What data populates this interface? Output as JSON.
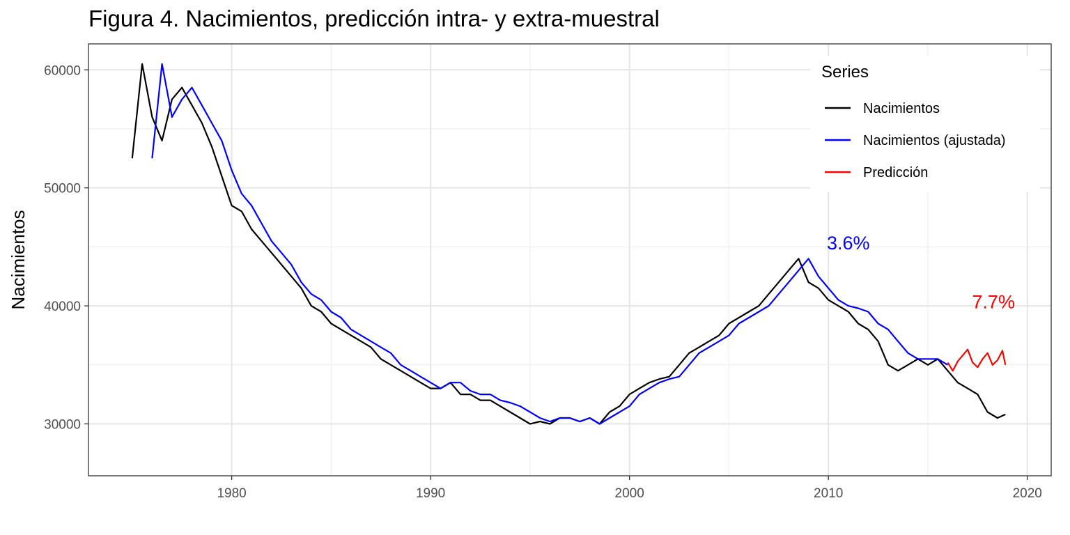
{
  "chart_data": {
    "type": "line",
    "title": "Figura 4. Nacimientos, predicción intra- y extra-muestral",
    "xlabel": "",
    "ylabel": "Nacimientos",
    "xlim": [
      1972.8,
      2021.2
    ],
    "ylim": [
      25600,
      62200
    ],
    "x_ticks": [
      1980,
      1990,
      2000,
      2010,
      2020
    ],
    "x_tick_labels": [
      "1980",
      "1990",
      "2000",
      "2010",
      "2020"
    ],
    "y_ticks": [
      30000,
      40000,
      50000,
      60000
    ],
    "y_tick_labels": [
      "30000",
      "40000",
      "50000",
      "60000"
    ],
    "grid": true,
    "legend": {
      "title": "Series",
      "position": "top-right",
      "entries": [
        "Nacimientos",
        "Nacimientos (ajustada)",
        "Predicción"
      ]
    },
    "series": [
      {
        "name": "Nacimientos",
        "color": "#000000",
        "x": [
          1975.0,
          1975.5,
          1976.0,
          1976.5,
          1977.0,
          1977.5,
          1978.0,
          1978.5,
          1979.0,
          1979.5,
          1980.0,
          1980.5,
          1981.0,
          1981.5,
          1982.0,
          1982.5,
          1983.0,
          1983.5,
          1984.0,
          1984.5,
          1985.0,
          1985.5,
          1986.0,
          1986.5,
          1987.0,
          1987.5,
          1988.0,
          1988.5,
          1989.0,
          1989.5,
          1990.0,
          1990.5,
          1991.0,
          1991.5,
          1992.0,
          1992.5,
          1993.0,
          1993.5,
          1994.0,
          1994.5,
          1995.0,
          1995.5,
          1996.0,
          1996.5,
          1997.0,
          1997.5,
          1998.0,
          1998.5,
          1999.0,
          1999.5,
          2000.0,
          2000.5,
          2001.0,
          2001.5,
          2002.0,
          2002.5,
          2003.0,
          2003.5,
          2004.0,
          2004.5,
          2005.0,
          2005.5,
          2006.0,
          2006.5,
          2007.0,
          2007.5,
          2008.0,
          2008.5,
          2009.0,
          2009.5,
          2010.0,
          2010.5,
          2011.0,
          2011.5,
          2012.0,
          2012.5,
          2013.0,
          2013.5,
          2014.0,
          2014.5,
          2015.0,
          2015.5,
          2016.0,
          2016.5,
          2017.0,
          2017.5,
          2018.0,
          2018.5,
          2018.9
        ],
        "values": [
          52500,
          60500,
          56000,
          54000,
          57500,
          58500,
          57000,
          55500,
          53500,
          51000,
          48500,
          48000,
          46500,
          45500,
          44500,
          43500,
          42500,
          41500,
          40000,
          39500,
          38500,
          38000,
          37500,
          37000,
          36500,
          35500,
          35000,
          34500,
          34000,
          33500,
          33000,
          33000,
          33500,
          32500,
          32500,
          32000,
          32000,
          31500,
          31000,
          30500,
          30000,
          30200,
          30000,
          30500,
          30500,
          30200,
          30500,
          30000,
          31000,
          31500,
          32500,
          33000,
          33500,
          33800,
          34000,
          35000,
          36000,
          36500,
          37000,
          37500,
          38500,
          39000,
          39500,
          40000,
          41000,
          42000,
          43000,
          44000,
          42000,
          41500,
          40500,
          40000,
          39500,
          38500,
          38000,
          37000,
          35000,
          34500,
          35000,
          35500,
          35000,
          35500,
          34500,
          33500,
          33000,
          32500,
          31000,
          30500,
          30800
        ]
      },
      {
        "name": "Nacimientos (ajustada)",
        "color": "#0000ff",
        "x": [
          1976.0,
          1976.5,
          1977.0,
          1977.5,
          1978.0,
          1978.5,
          1979.0,
          1979.5,
          1980.0,
          1980.5,
          1981.0,
          1981.5,
          1982.0,
          1982.5,
          1983.0,
          1983.5,
          1984.0,
          1984.5,
          1985.0,
          1985.5,
          1986.0,
          1986.5,
          1987.0,
          1987.5,
          1988.0,
          1988.5,
          1989.0,
          1989.5,
          1990.0,
          1990.5,
          1991.0,
          1991.5,
          1992.0,
          1992.5,
          1993.0,
          1993.5,
          1994.0,
          1994.5,
          1995.0,
          1995.5,
          1996.0,
          1996.5,
          1997.0,
          1997.5,
          1998.0,
          1998.5,
          1999.0,
          1999.5,
          2000.0,
          2000.5,
          2001.0,
          2001.5,
          2002.0,
          2002.5,
          2003.0,
          2003.5,
          2004.0,
          2004.5,
          2005.0,
          2005.5,
          2006.0,
          2006.5,
          2007.0,
          2007.5,
          2008.0,
          2008.5,
          2009.0,
          2009.5,
          2010.0,
          2010.5,
          2011.0,
          2011.5,
          2012.0,
          2012.5,
          2013.0,
          2013.5,
          2014.0,
          2014.5,
          2015.0,
          2015.5,
          2016.0
        ],
        "values": [
          52500,
          60500,
          56000,
          57500,
          58500,
          57000,
          55500,
          54000,
          51500,
          49500,
          48500,
          47000,
          45500,
          44500,
          43500,
          42000,
          41000,
          40500,
          39500,
          39000,
          38000,
          37500,
          37000,
          36500,
          36000,
          35000,
          34500,
          34000,
          33500,
          33000,
          33500,
          33500,
          32800,
          32500,
          32500,
          32000,
          31800,
          31500,
          31000,
          30500,
          30200,
          30500,
          30500,
          30200,
          30500,
          30000,
          30500,
          31000,
          31500,
          32500,
          33000,
          33500,
          33800,
          34000,
          35000,
          36000,
          36500,
          37000,
          37500,
          38500,
          39000,
          39500,
          40000,
          41000,
          42000,
          43000,
          44000,
          42500,
          41500,
          40500,
          40000,
          39800,
          39500,
          38500,
          38000,
          37000,
          36000,
          35500,
          35500,
          35500,
          35000
        ]
      },
      {
        "name": "Predicción",
        "color": "#ff0000",
        "x": [
          2016.0,
          2016.25,
          2016.5,
          2016.75,
          2017.0,
          2017.25,
          2017.5,
          2017.75,
          2018.0,
          2018.25,
          2018.5,
          2018.75,
          2018.9
        ],
        "values": [
          35200,
          34500,
          35300,
          35800,
          36300,
          35200,
          34800,
          35500,
          36000,
          35000,
          35400,
          36200,
          35000
        ]
      }
    ],
    "annotations": [
      {
        "text": "3.6%",
        "x": 2011.0,
        "y": 44800,
        "color": "#0000ff"
      },
      {
        "text": "7.7%",
        "x": 2018.3,
        "y": 39800,
        "color": "#ff0000"
      }
    ]
  }
}
